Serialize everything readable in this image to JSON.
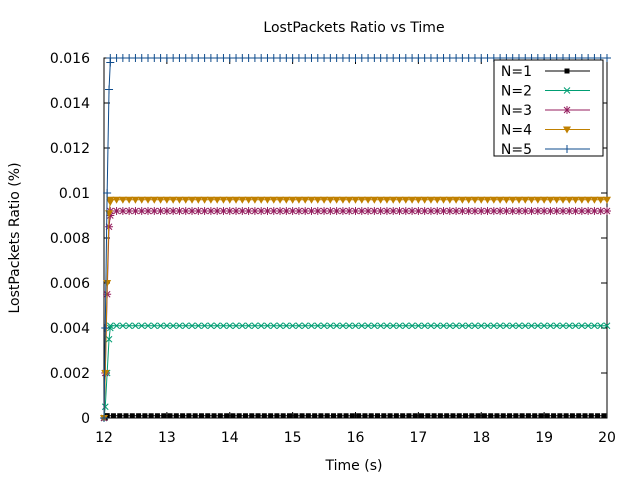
{
  "chart_data": {
    "type": "line",
    "title": "LostPackets Ratio vs Time",
    "xlabel": "Time (s)",
    "ylabel": "LostPackets Ratio (%)",
    "xlim": [
      12,
      20
    ],
    "ylim": [
      0,
      0.016
    ],
    "xticks": [
      12,
      13,
      14,
      15,
      16,
      17,
      18,
      19,
      20
    ],
    "xtick_labels": [
      "12",
      "13",
      "14",
      "15",
      "16",
      "17",
      "18",
      "19",
      "20"
    ],
    "yticks": [
      0,
      0.002,
      0.004,
      0.006,
      0.008,
      0.01,
      0.012,
      0.014,
      0.016
    ],
    "ytick_labels": [
      "0",
      "0.002",
      "0.004",
      "0.006",
      "0.008",
      "0.01",
      "0.012",
      "0.014",
      "0.016"
    ],
    "grid": false,
    "legend_position": "top-right",
    "series": [
      {
        "name": "N=1",
        "color": "#000000",
        "marker": "filled-square",
        "ramp": [
          [
            12.0,
            0.0
          ],
          [
            12.02,
            0.0
          ],
          [
            12.05,
            0.0001
          ]
        ],
        "steady_value": 0.0001,
        "steady_step": 0.1
      },
      {
        "name": "N=2",
        "color": "#009e73",
        "marker": "x",
        "ramp": [
          [
            12.0,
            0.0
          ],
          [
            12.02,
            0.0005
          ],
          [
            12.05,
            0.002
          ],
          [
            12.08,
            0.0035
          ],
          [
            12.1,
            0.004
          ]
        ],
        "steady_value": 0.0041,
        "steady_step": 0.1
      },
      {
        "name": "N=3",
        "color": "#941c5e",
        "marker": "star",
        "ramp": [
          [
            12.0,
            0.0
          ],
          [
            12.02,
            0.002
          ],
          [
            12.05,
            0.0055
          ],
          [
            12.08,
            0.0085
          ],
          [
            12.1,
            0.009
          ]
        ],
        "steady_value": 0.0092,
        "steady_step": 0.1
      },
      {
        "name": "N=4",
        "color": "#c08000",
        "marker": "triangle-down",
        "ramp": [
          [
            12.0,
            0.0
          ],
          [
            12.02,
            0.002
          ],
          [
            12.05,
            0.006
          ],
          [
            12.08,
            0.0091
          ],
          [
            12.1,
            0.0096
          ]
        ],
        "steady_value": 0.0097,
        "steady_step": 0.1
      },
      {
        "name": "N=5",
        "color": "#0e4b8c",
        "marker": "plus",
        "ramp": [
          [
            12.0,
            0.0
          ],
          [
            12.02,
            0.004
          ],
          [
            12.05,
            0.01
          ],
          [
            12.08,
            0.0146
          ],
          [
            12.1,
            0.0158
          ]
        ],
        "steady_value": 0.016,
        "steady_step": 0.1
      }
    ]
  }
}
